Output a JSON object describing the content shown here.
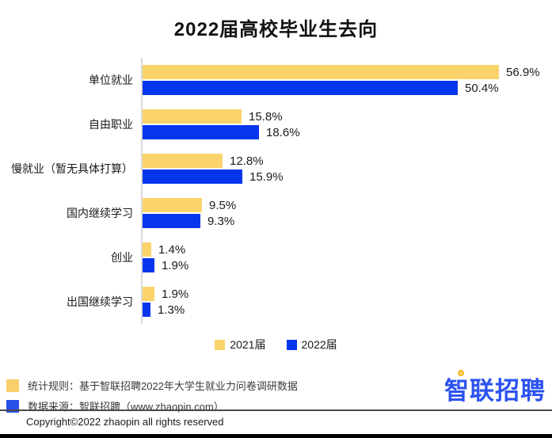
{
  "title": "2022届高校毕业生去向",
  "chart_data": {
    "type": "bar",
    "orientation": "horizontal",
    "title": "2022届高校毕业生去向",
    "categories": [
      "单位就业",
      "自由职业",
      "慢就业（暂无具体打算）",
      "国内继续学习",
      "创业",
      "出国继续学习"
    ],
    "series": [
      {
        "name": "2021届",
        "color": "#FAD46B",
        "values": [
          56.9,
          15.8,
          12.8,
          9.5,
          1.4,
          1.9
        ]
      },
      {
        "name": "2022届",
        "color": "#0636EC",
        "values": [
          50.4,
          18.6,
          15.9,
          9.3,
          1.9,
          1.3
        ]
      }
    ],
    "value_suffix": "%",
    "value_labels": true,
    "xlim": [
      0,
      60
    ],
    "grid": false,
    "legend_position": "bottom-center"
  },
  "footer": {
    "notes": [
      {
        "marker_color": "#F9CF6A",
        "text": "统计规则：基于智联招聘2022年大学生就业力问卷调研数据"
      },
      {
        "marker_color": "#2850EA",
        "text": "数据来源：智联招聘（www.zhaopin.com）"
      }
    ],
    "logo_text": "智联招聘",
    "copyright": "Copyright©2022 zhaopin all rights reserved"
  },
  "colors": {
    "bar_yellow": "#FAD46B",
    "bar_blue": "#0636EC",
    "logo_blue": "#2B52F0",
    "logo_dot_yellow": "#FBBB2C",
    "axis_line": "#D9D9D9",
    "separator": "#4A4A4A",
    "text_dark": "#1A1A1A"
  }
}
